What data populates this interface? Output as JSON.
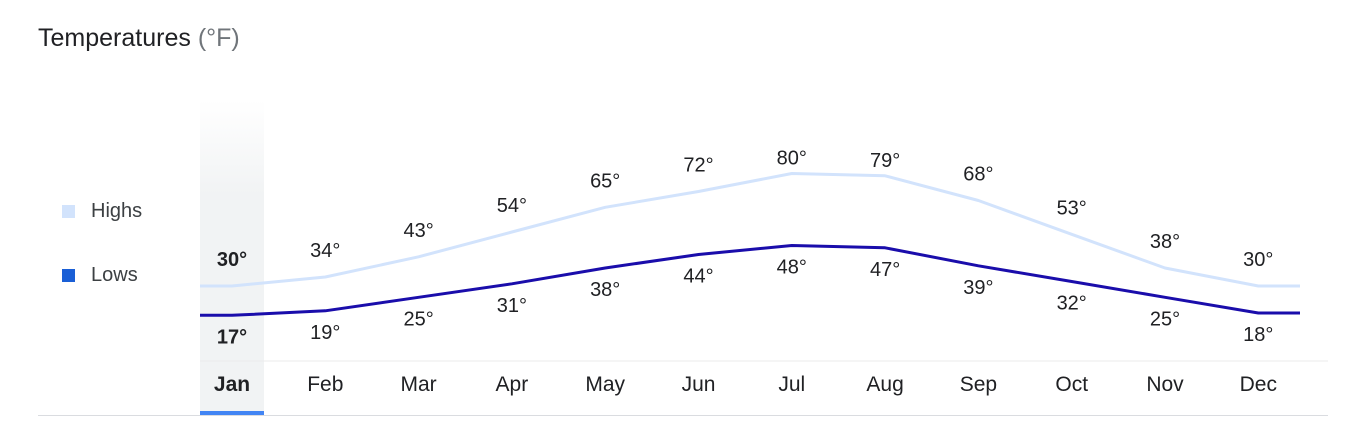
{
  "title": "Temperatures",
  "unit": "(°F)",
  "selected_month": "Jan",
  "colors": {
    "highs": "#d2e3fc",
    "lows": "#1a0dab",
    "selected_bg": "#f1f3f4",
    "selected_bar": "#4285f4"
  },
  "legend": [
    {
      "label": "Highs",
      "color": "#d2e3fc"
    },
    {
      "label": "Lows",
      "color": "#1a5fd6"
    }
  ],
  "chart_data": {
    "type": "line",
    "categories": [
      "Jan",
      "Feb",
      "Mar",
      "Apr",
      "May",
      "Jun",
      "Jul",
      "Aug",
      "Sep",
      "Oct",
      "Nov",
      "Dec"
    ],
    "series": [
      {
        "name": "Highs",
        "values": [
          30,
          34,
          43,
          54,
          65,
          72,
          80,
          79,
          68,
          53,
          38,
          30
        ]
      },
      {
        "name": "Lows",
        "values": [
          17,
          19,
          25,
          31,
          38,
          44,
          48,
          47,
          39,
          32,
          25,
          18
        ]
      }
    ],
    "value_suffix": "°"
  }
}
